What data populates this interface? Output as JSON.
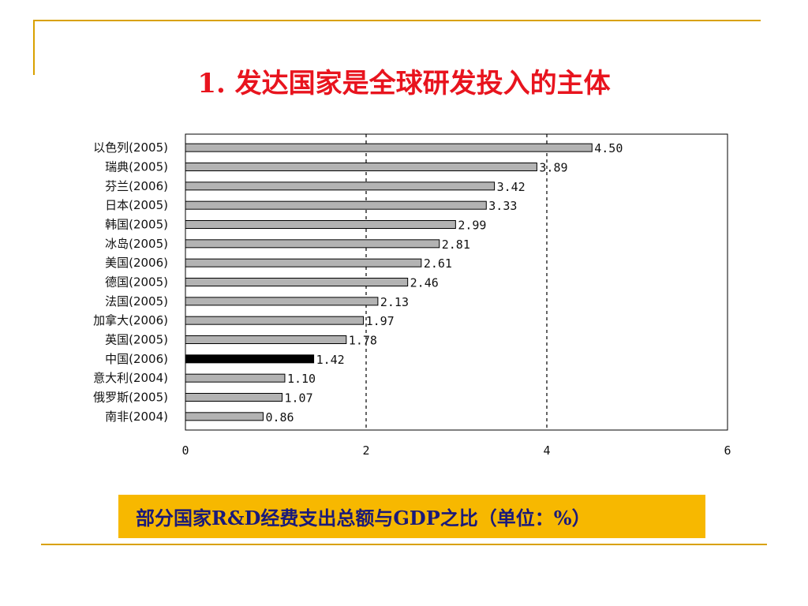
{
  "slide": {
    "title": "1. 发达国家是全球研发投入的主体",
    "caption": "部分国家R&D经费支出总额与GDP之比（单位：%）"
  },
  "colors": {
    "title": "#e8141e",
    "frame": "#d9a100",
    "caption_bg": "#f7b800",
    "caption_text": "#1a1a7a",
    "bar_default": "#b3b3b3",
    "bar_highlight": "#000000"
  },
  "chart_data": {
    "type": "bar",
    "orientation": "horizontal",
    "categories": [
      "以色列(2005)",
      "瑞典(2005)",
      "芬兰(2006)",
      "日本(2005)",
      "韩国(2005)",
      "冰岛(2005)",
      "美国(2006)",
      "德国(2005)",
      "法国(2005)",
      "加拿大(2006)",
      "英国(2005)",
      "中国(2006)",
      "意大利(2004)",
      "俄罗斯(2005)",
      "南非(2004)"
    ],
    "values": [
      4.5,
      3.89,
      3.42,
      3.33,
      2.99,
      2.81,
      2.61,
      2.46,
      2.13,
      1.97,
      1.78,
      1.42,
      1.1,
      1.07,
      0.86
    ],
    "value_labels": [
      "4.50",
      "3.89",
      "3.42",
      "3.33",
      "2.99",
      "2.81",
      "2.61",
      "2.46",
      "2.13",
      "1.97",
      "1.78",
      "1.42",
      "1.10",
      "1.07",
      "0.86"
    ],
    "highlight": "中国(2006)",
    "xlim": [
      0,
      6
    ],
    "xticks": [
      "0",
      "2",
      "4",
      "6"
    ],
    "gridlines_at": [
      2,
      4
    ],
    "grid": "dashed vertical",
    "title": "",
    "xlabel": "",
    "ylabel": ""
  }
}
